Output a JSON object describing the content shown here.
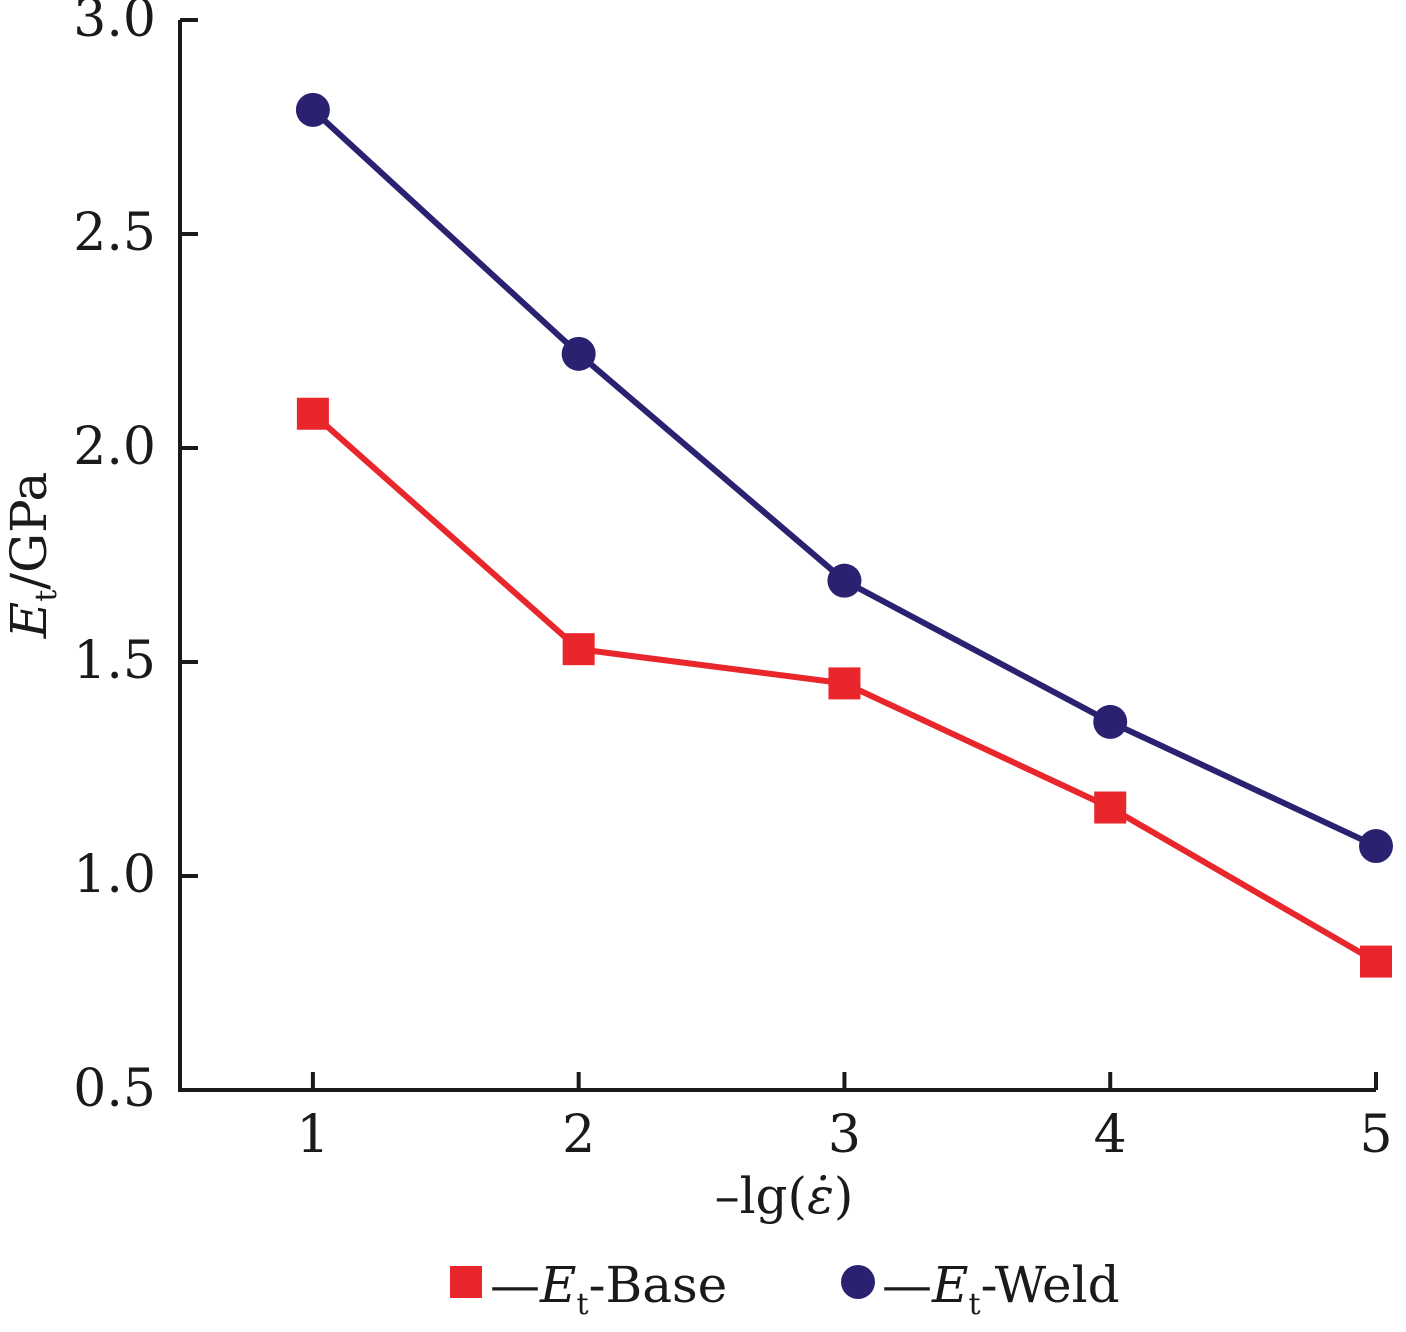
{
  "chart_data": {
    "type": "line",
    "title": "",
    "x": [
      1,
      2,
      3,
      4,
      5
    ],
    "x_tick_labels": [
      "1",
      "2",
      "3",
      "4",
      "5"
    ],
    "y_tick_labels": [
      "0.5",
      "1.0",
      "1.5",
      "2.0",
      "2.5",
      "3.0"
    ],
    "xlim": [
      0.5,
      5
    ],
    "ylim": [
      0.5,
      3.0
    ],
    "xlabel": {
      "prefix": "–lg(",
      "symbol": "ε̇",
      "suffix": ")"
    },
    "ylabel": {
      "symbol": "E",
      "subscript": "t",
      "unit": "/GPa"
    },
    "grid": false,
    "legend_position": "bottom",
    "series": [
      {
        "name": "Base",
        "legend": {
          "dash": "—",
          "symbol": "E",
          "subscript": "t",
          "suffix": "-Base"
        },
        "marker": "square",
        "color": "#e8262b",
        "values": [
          2.08,
          1.53,
          1.45,
          1.16,
          0.8
        ]
      },
      {
        "name": "Weld",
        "legend": {
          "dash": "—",
          "symbol": "E",
          "subscript": "t",
          "suffix": "-Weld"
        },
        "marker": "circle",
        "color": "#2a2270",
        "values": [
          2.79,
          2.22,
          1.69,
          1.36,
          1.07
        ]
      }
    ]
  }
}
